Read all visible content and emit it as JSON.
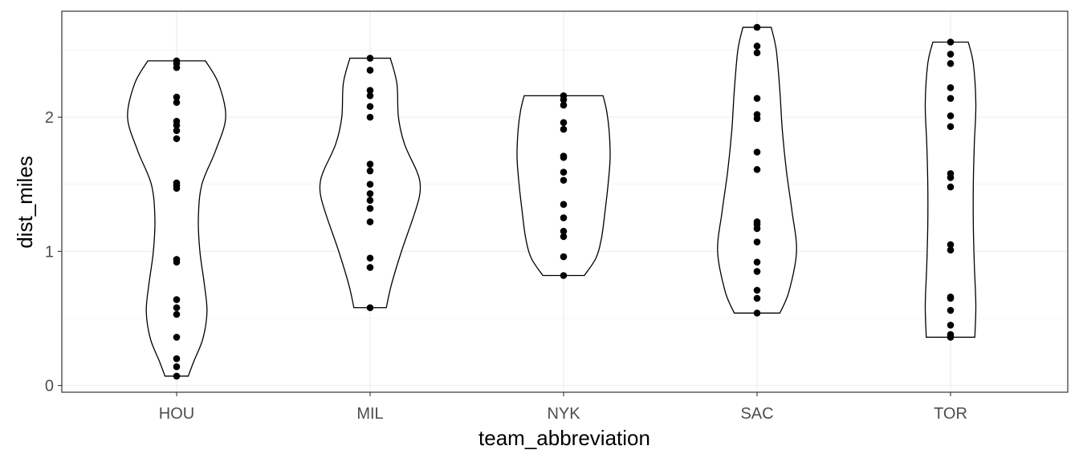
{
  "chart_data": {
    "type": "violin",
    "xlabel": "team_abbreviation",
    "ylabel": "dist_miles",
    "categories": [
      "HOU",
      "MIL",
      "NYK",
      "SAC",
      "TOR"
    ],
    "ylim": [
      -0.05,
      2.79
    ],
    "yticks": [
      0,
      1,
      2
    ],
    "grid": true,
    "theme": "black-and-white",
    "colors": {
      "grid": "#ebebeb",
      "border": "#333333",
      "violin": "#000000",
      "point": "#000000"
    },
    "series": [
      {
        "category": "HOU",
        "points": [
          2.42,
          2.4,
          2.37,
          2.15,
          2.11,
          1.97,
          1.94,
          1.9,
          1.84,
          1.51,
          1.49,
          1.47,
          0.94,
          0.92,
          0.64,
          0.58,
          0.53,
          0.36,
          0.2,
          0.14,
          0.07
        ],
        "density": [
          [
            0.07,
            0.23
          ],
          [
            0.18,
            0.34
          ],
          [
            0.35,
            0.52
          ],
          [
            0.55,
            0.6
          ],
          [
            0.75,
            0.55
          ],
          [
            1.0,
            0.46
          ],
          [
            1.25,
            0.43
          ],
          [
            1.5,
            0.5
          ],
          [
            1.75,
            0.77
          ],
          [
            2.0,
            0.97
          ],
          [
            2.25,
            0.83
          ],
          [
            2.42,
            0.57
          ]
        ]
      },
      {
        "category": "MIL",
        "points": [
          2.44,
          2.35,
          2.2,
          2.16,
          2.08,
          2.0,
          1.65,
          1.6,
          1.5,
          1.43,
          1.38,
          1.32,
          1.22,
          0.95,
          0.88,
          0.58
        ],
        "density": [
          [
            0.58,
            0.32
          ],
          [
            0.75,
            0.42
          ],
          [
            1.0,
            0.62
          ],
          [
            1.25,
            0.85
          ],
          [
            1.4,
            0.97
          ],
          [
            1.5,
            0.99
          ],
          [
            1.6,
            0.92
          ],
          [
            1.8,
            0.68
          ],
          [
            2.0,
            0.56
          ],
          [
            2.25,
            0.53
          ],
          [
            2.44,
            0.4
          ]
        ]
      },
      {
        "category": "NYK",
        "points": [
          2.16,
          2.13,
          2.09,
          1.96,
          1.91,
          1.71,
          1.7,
          1.59,
          1.53,
          1.35,
          1.25,
          1.15,
          1.11,
          0.96,
          0.82
        ],
        "density": [
          [
            0.82,
            0.41
          ],
          [
            0.95,
            0.64
          ],
          [
            1.1,
            0.75
          ],
          [
            1.3,
            0.82
          ],
          [
            1.5,
            0.88
          ],
          [
            1.7,
            0.92
          ],
          [
            1.9,
            0.9
          ],
          [
            2.05,
            0.85
          ],
          [
            2.16,
            0.78
          ]
        ]
      },
      {
        "category": "SAC",
        "points": [
          2.67,
          2.53,
          2.48,
          2.14,
          2.02,
          1.99,
          1.74,
          1.61,
          1.22,
          1.2,
          1.17,
          1.07,
          0.92,
          0.85,
          0.71,
          0.65,
          0.54
        ],
        "density": [
          [
            0.54,
            0.45
          ],
          [
            0.7,
            0.63
          ],
          [
            1.0,
            0.78
          ],
          [
            1.3,
            0.69
          ],
          [
            1.6,
            0.58
          ],
          [
            1.9,
            0.5
          ],
          [
            2.2,
            0.45
          ],
          [
            2.5,
            0.38
          ],
          [
            2.67,
            0.28
          ]
        ]
      },
      {
        "category": "TOR",
        "points": [
          2.56,
          2.47,
          2.4,
          2.22,
          2.14,
          2.01,
          1.93,
          1.58,
          1.55,
          1.48,
          1.05,
          1.01,
          0.66,
          0.65,
          0.56,
          0.45,
          0.38,
          0.36
        ],
        "density": [
          [
            0.36,
            0.48
          ],
          [
            0.6,
            0.5
          ],
          [
            0.9,
            0.47
          ],
          [
            1.2,
            0.45
          ],
          [
            1.5,
            0.45
          ],
          [
            1.8,
            0.47
          ],
          [
            2.1,
            0.5
          ],
          [
            2.4,
            0.45
          ],
          [
            2.56,
            0.35
          ]
        ]
      }
    ]
  }
}
